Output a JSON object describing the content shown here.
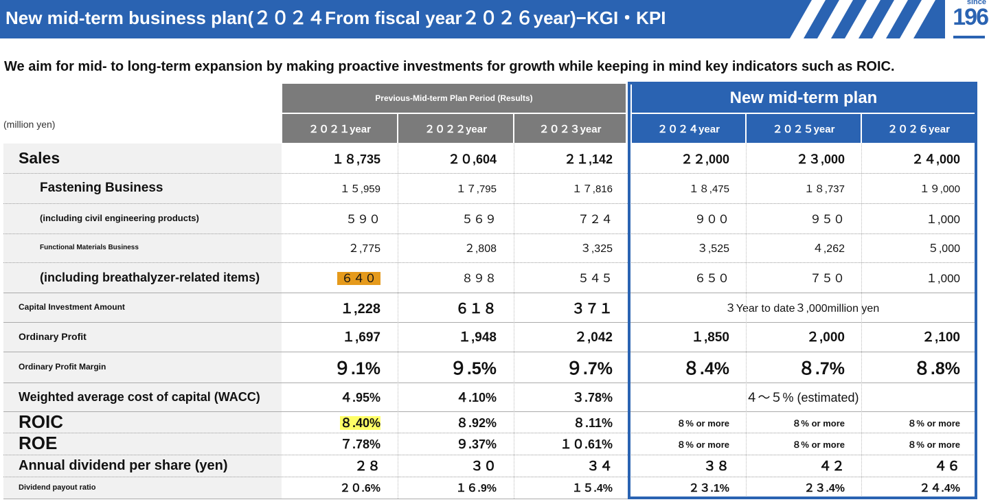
{
  "header": {
    "title": "New mid-term business plan(２０２４From fiscal year２０２６year)−KGI・KPI",
    "logo_since": "since",
    "logo_number": "196"
  },
  "subtitle": "We aim for mid- to long-term expansion by making proactive investments for growth while keeping in mind key indicators such as ROIC.",
  "table": {
    "unit": "(million yen)",
    "group_previous": "Previous-Mid-term Plan Period (Results)",
    "group_new": "New mid-term plan",
    "years": [
      "２０２１year",
      "２０２２year",
      "２０２３year",
      "２０２４year",
      "２０２５year",
      "２０２６year"
    ],
    "rows": [
      {
        "label": "Sales",
        "values": [
          "１８,735",
          "２０,604",
          "２１,142",
          "２２,000",
          "２３,000",
          "２４,000"
        ]
      },
      {
        "label": "Fastening Business",
        "values": [
          "１５,959",
          "１７,795",
          "１７,816",
          "１８,475",
          "１８,737",
          "１９,000"
        ]
      },
      {
        "label": "(including civil engineering products)",
        "values": [
          "５９０",
          "５６９",
          "７２４",
          "９００",
          "９５０",
          "１,000"
        ]
      },
      {
        "label": "Functional Materials Business",
        "values": [
          "２,775",
          "２,808",
          "３,325",
          "３,525",
          "４,262",
          "５,000"
        ]
      },
      {
        "label": "(including breathalyzer-related items)",
        "values": [
          "６４０",
          "８９８",
          "５４５",
          "６５０",
          "７５０",
          "１,000"
        ]
      },
      {
        "label": "Capital Investment Amount",
        "values": [
          "１,228",
          "６１８",
          "３７１"
        ],
        "merged_new": "３Year to date３,000million yen"
      },
      {
        "label": "Ordinary Profit",
        "values": [
          "１,697",
          "１,948",
          "２,042",
          "１,850",
          "２,000",
          "２,100"
        ]
      },
      {
        "label": "Ordinary Profit Margin",
        "values": [
          "９.1%",
          "９.5%",
          "９.7%",
          "８.4%",
          "８.7%",
          "８.8%"
        ]
      },
      {
        "label": "Weighted average cost of capital (WACC)",
        "values": [
          "４.95%",
          "４.10%",
          "３.78%"
        ],
        "merged_new": "４～５% (estimated)"
      },
      {
        "label": "ROIC",
        "values": [
          "８.40%",
          "８.92%",
          "８.11%",
          "８% or more",
          "８% or more",
          "８% or more"
        ]
      },
      {
        "label": "ROE",
        "values": [
          "７.78%",
          "９.37%",
          "１０.61%",
          "８% or more",
          "８% or more",
          "８% or more"
        ]
      },
      {
        "label": "Annual dividend per share (yen)",
        "values": [
          "２８",
          "３０",
          "３４",
          "３８",
          "４２",
          "４６"
        ]
      },
      {
        "label": "Dividend payout ratio",
        "values": [
          "２０.6%",
          "１６.9%",
          "１５.4%",
          "２３.1%",
          "２３.4%",
          "２４.4%"
        ]
      }
    ]
  },
  "colors": {
    "brand_blue": "#2a63b2",
    "header_gray": "#7b7b7b",
    "highlight_orange": "#e59a1c",
    "highlight_yellow": "#ffff66"
  }
}
